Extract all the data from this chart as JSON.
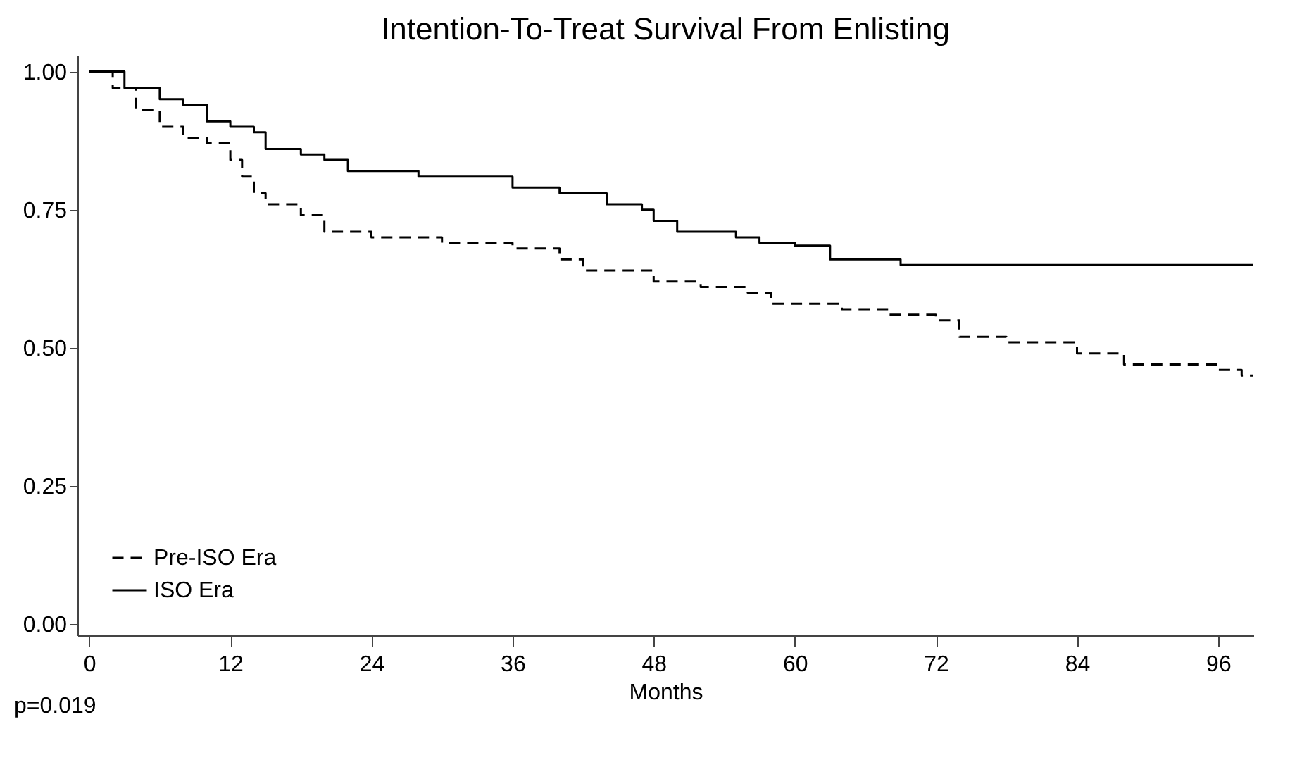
{
  "chart_data": {
    "type": "step",
    "title": "Intention-To-Treat Survival From Enlisting",
    "xlabel": "Months",
    "xlim": [
      -1,
      99
    ],
    "xticks": [
      0,
      12,
      24,
      36,
      48,
      60,
      72,
      84,
      96
    ],
    "ylim": [
      -0.02,
      1.03
    ],
    "yticks": [
      {
        "value": 0,
        "label": "0.00"
      },
      {
        "value": 0.25,
        "label": "0.25"
      },
      {
        "value": 0.5,
        "label": "0.50"
      },
      {
        "value": 0.75,
        "label": "0.75"
      },
      {
        "value": 1,
        "label": "1.00"
      }
    ],
    "grid": false,
    "legend": "bottom left",
    "marker": "none",
    "annotations": [
      "p=0.019"
    ],
    "series": [
      {
        "name": "Pre-ISO Era",
        "color": "#000000",
        "line_style": "dashed",
        "x": [
          0,
          2,
          4,
          6,
          8,
          10,
          12,
          13,
          14,
          15,
          18,
          20,
          24,
          30,
          36,
          40,
          42,
          48,
          52,
          56,
          58,
          64,
          68,
          72,
          74,
          78,
          84,
          88,
          96,
          98,
          99
        ],
        "values": [
          1.0,
          0.97,
          0.93,
          0.9,
          0.88,
          0.87,
          0.84,
          0.81,
          0.78,
          0.76,
          0.74,
          0.71,
          0.7,
          0.69,
          0.68,
          0.66,
          0.64,
          0.62,
          0.61,
          0.6,
          0.58,
          0.57,
          0.56,
          0.55,
          0.52,
          0.51,
          0.49,
          0.47,
          0.46,
          0.45,
          0.45
        ]
      },
      {
        "name": "ISO Era",
        "color": "#000000",
        "line_style": "solid",
        "x": [
          0,
          3,
          6,
          8,
          10,
          12,
          14,
          15,
          18,
          20,
          22,
          28,
          36,
          40,
          44,
          47,
          48,
          50,
          55,
          57,
          60,
          63,
          69,
          99
        ],
        "values": [
          1.0,
          0.97,
          0.95,
          0.94,
          0.91,
          0.9,
          0.89,
          0.86,
          0.85,
          0.84,
          0.82,
          0.81,
          0.79,
          0.78,
          0.76,
          0.75,
          0.73,
          0.71,
          0.7,
          0.69,
          0.685,
          0.66,
          0.65,
          0.65
        ]
      }
    ]
  }
}
